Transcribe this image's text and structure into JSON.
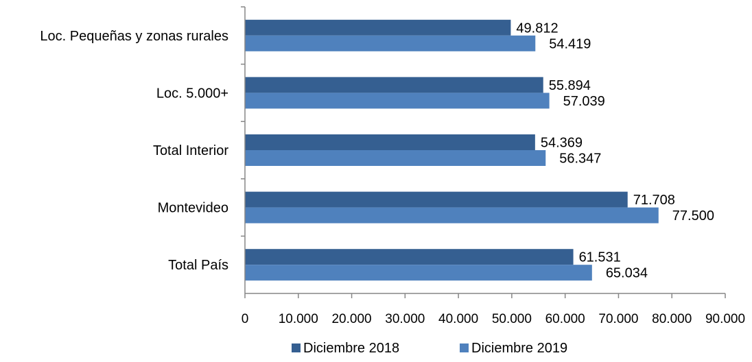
{
  "chart_data": {
    "type": "bar",
    "orientation": "horizontal",
    "categories": [
      "Total País",
      "Montevideo",
      "Total Interior",
      "Loc. 5.000+",
      "Loc. Pequeñas y zonas rurales"
    ],
    "series": [
      {
        "name": "Diciembre 2018",
        "color": "#355f91",
        "values": [
          61531,
          71708,
          54369,
          55894,
          49812
        ],
        "value_labels": [
          "61.531",
          "71.708",
          "54.369",
          "55.894",
          "49.812"
        ]
      },
      {
        "name": "Diciembre 2019",
        "color": "#4f81bd",
        "values": [
          65034,
          77500,
          56347,
          57039,
          54419
        ],
        "value_labels": [
          "65.034",
          "77.500",
          "56.347",
          "57.039",
          "54.419"
        ]
      }
    ],
    "xlim": [
      0,
      90000
    ],
    "x_ticks": [
      0,
      10000,
      20000,
      30000,
      40000,
      50000,
      60000,
      70000,
      80000,
      90000
    ],
    "x_tick_labels": [
      "0",
      "10.000",
      "20.000",
      "30.000",
      "40.000",
      "50.000",
      "60.000",
      "70.000",
      "80.000",
      "90.000"
    ],
    "grid": false,
    "legend_position": "bottom",
    "title": "",
    "xlabel": "",
    "ylabel": ""
  }
}
